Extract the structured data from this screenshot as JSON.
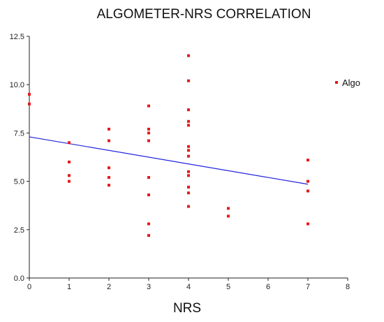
{
  "chart_data": {
    "type": "scatter",
    "title": "ALGOMETER-NRS CORRELATION",
    "xlabel": "NRS",
    "ylabel": "",
    "xlim": [
      0,
      8
    ],
    "ylim": [
      0,
      12.5
    ],
    "x_ticks": [
      "0",
      "1",
      "2",
      "3",
      "4",
      "5",
      "6",
      "7",
      "8"
    ],
    "y_ticks": [
      "0.0",
      "2.5",
      "5.0",
      "7.5",
      "10.0",
      "12.5"
    ],
    "grid": false,
    "legend_position": "right",
    "series": [
      {
        "name": "Algo",
        "color": "#e41a1c",
        "points": [
          [
            0,
            9.5
          ],
          [
            0,
            9.0
          ],
          [
            1,
            7.0
          ],
          [
            1,
            6.0
          ],
          [
            1,
            5.3
          ],
          [
            1,
            5.0
          ],
          [
            2,
            7.7
          ],
          [
            2,
            7.1
          ],
          [
            2,
            5.7
          ],
          [
            2,
            5.2
          ],
          [
            2,
            4.8
          ],
          [
            3,
            8.9
          ],
          [
            3,
            7.7
          ],
          [
            3,
            7.5
          ],
          [
            3,
            7.1
          ],
          [
            3,
            5.2
          ],
          [
            3,
            4.3
          ],
          [
            3,
            2.8
          ],
          [
            3,
            2.2
          ],
          [
            4,
            11.5
          ],
          [
            4,
            10.2
          ],
          [
            4,
            8.7
          ],
          [
            4,
            8.1
          ],
          [
            4,
            7.9
          ],
          [
            4,
            6.8
          ],
          [
            4,
            6.6
          ],
          [
            4,
            6.3
          ],
          [
            4,
            5.5
          ],
          [
            4,
            5.3
          ],
          [
            4,
            4.7
          ],
          [
            4,
            4.4
          ],
          [
            4,
            3.7
          ],
          [
            5,
            3.6
          ],
          [
            5,
            3.2
          ],
          [
            7,
            6.1
          ],
          [
            7,
            5.0
          ],
          [
            7,
            4.5
          ],
          [
            7,
            2.8
          ]
        ]
      }
    ],
    "fit_line": {
      "color": "#2222dd",
      "x": [
        0,
        7
      ],
      "y": [
        7.3,
        4.85
      ]
    }
  }
}
